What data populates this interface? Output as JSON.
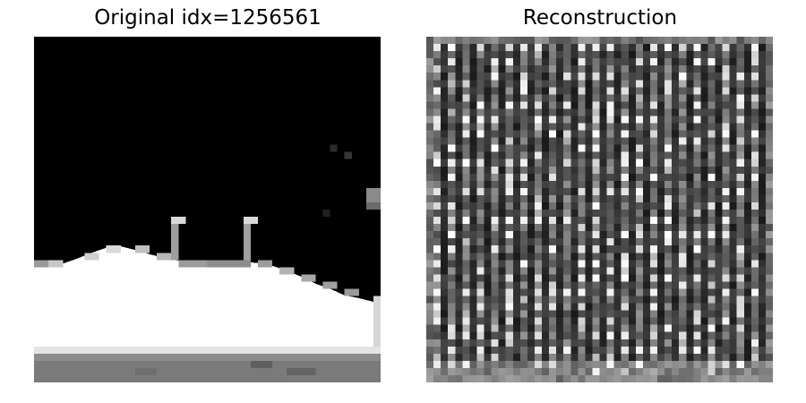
{
  "figure": {
    "panels": [
      {
        "title": "Original idx=1256561",
        "image": {
          "description_icon": "grayscale-night-snow-scene",
          "colors": {
            "sky": "#000000",
            "snow": "#ffffff",
            "snow_shadow": "#e6e6e6",
            "ground": "#7a7a7a",
            "lamp": "#bdbdbd"
          }
        }
      },
      {
        "title": "Reconstruction",
        "image": {
          "description_icon": "noisy-grayscale-grid-pattern",
          "colors": {
            "base": "#1a1a1a",
            "bright": "#f2f2f2",
            "mid": "#7f7f7f"
          }
        }
      }
    ]
  }
}
